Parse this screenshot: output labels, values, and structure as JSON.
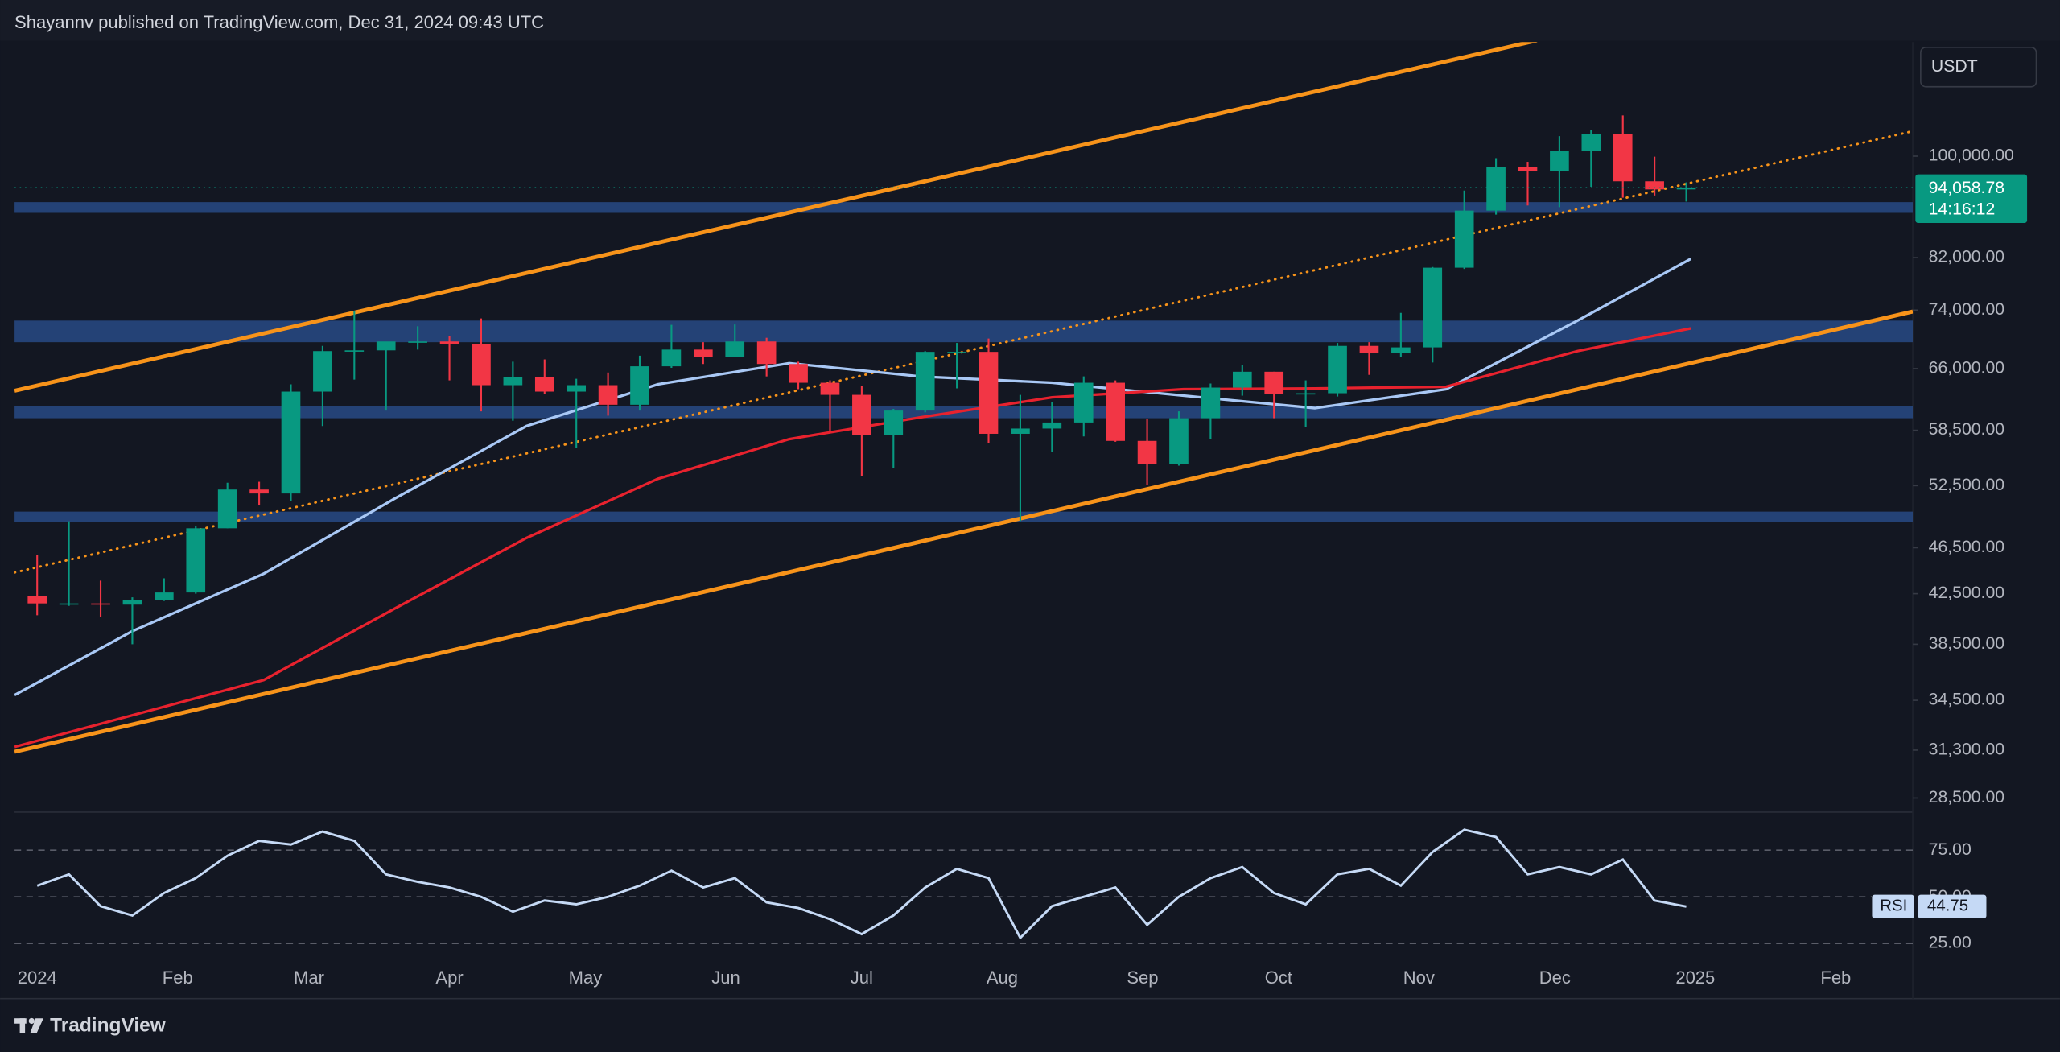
{
  "header": {
    "text": "Shayannv published on TradingView.com, Dec 31, 2024 09:43 UTC"
  },
  "currency": "USDT",
  "footer": {
    "brand": "TradingView"
  },
  "chart_data": [
    {
      "type": "candlestick",
      "log_scale": true,
      "grid": false,
      "up_color": "#089981",
      "down_color": "#f23645",
      "x": [
        0,
        7,
        14,
        21,
        28,
        35,
        42,
        49,
        56,
        63,
        70,
        77,
        84,
        91,
        98,
        105,
        112,
        119,
        126,
        133,
        140,
        147,
        154,
        161,
        168,
        175,
        182,
        189,
        196,
        203,
        210,
        217,
        224,
        231,
        238,
        245,
        252,
        259,
        266,
        273,
        280,
        287,
        294,
        301,
        308,
        315,
        322,
        329,
        336,
        343,
        350,
        357,
        364
      ],
      "open": [
        42280,
        41700,
        41700,
        41600,
        42000,
        42600,
        48300,
        52100,
        51700,
        63100,
        68300,
        68400,
        69600,
        69600,
        69300,
        63900,
        64900,
        63100,
        63900,
        61500,
        66300,
        68500,
        67500,
        69600,
        66600,
        64200,
        62700,
        58000,
        60800,
        68200,
        68200,
        58100,
        58700,
        59400,
        64200,
        57300,
        54800,
        59900,
        63600,
        65600,
        62800,
        62900,
        69000,
        68000,
        68800,
        80400,
        89900,
        97900,
        97200,
        101000,
        104400,
        95200,
        93700
      ],
      "high": [
        45880,
        48970,
        43600,
        42200,
        43800,
        48500,
        52800,
        52900,
        64000,
        69000,
        73800,
        68900,
        71700,
        70300,
        72800,
        66900,
        67200,
        64700,
        65500,
        67700,
        71900,
        69500,
        71950,
        70100,
        66900,
        64500,
        63800,
        61000,
        68300,
        69400,
        70000,
        62700,
        61800,
        65000,
        64500,
        59800,
        60700,
        64100,
        66500,
        65600,
        64500,
        69400,
        69500,
        73600,
        80500,
        93500,
        99600,
        98900,
        104000,
        105200,
        108300,
        99900,
        95000
      ],
      "low": [
        40750,
        41500,
        40600,
        38500,
        41900,
        42500,
        48300,
        50500,
        50900,
        59000,
        64600,
        60800,
        68500,
        64500,
        60700,
        59600,
        62800,
        56500,
        60200,
        60800,
        66100,
        66600,
        67500,
        65000,
        63400,
        58400,
        53500,
        54300,
        60600,
        63500,
        57100,
        49000,
        56100,
        57800,
        57200,
        52600,
        54600,
        57500,
        62600,
        59900,
        58900,
        62500,
        65200,
        67500,
        66800,
        80200,
        89200,
        90800,
        90500,
        94200,
        92200,
        92600,
        91500
      ],
      "close": [
        41700,
        41700,
        41600,
        42000,
        42600,
        48300,
        52100,
        51700,
        63100,
        68300,
        68400,
        69600,
        69600,
        69300,
        63900,
        64900,
        63100,
        63900,
        61500,
        66300,
        68500,
        67500,
        69600,
        66600,
        64200,
        62700,
        58000,
        60800,
        68200,
        68200,
        58100,
        58700,
        59400,
        64200,
        57300,
        54800,
        59900,
        63600,
        65600,
        62800,
        62900,
        69000,
        68000,
        68800,
        80400,
        89900,
        97900,
        97200,
        101000,
        104400,
        95200,
        93700,
        94058.78
      ],
      "moving_averages": [
        {
          "color": "#a9c8f5",
          "x": [
            -5,
            21,
            50,
            79,
            108,
            137,
            166,
            195,
            224,
            253,
            282,
            311,
            340,
            365
          ],
          "values": [
            34850,
            39500,
            44200,
            51200,
            59000,
            64000,
            66700,
            65000,
            64200,
            62600,
            61100,
            63400,
            72500,
            81800
          ]
        },
        {
          "color": "#e8222e",
          "x": [
            -5,
            50,
            79,
            108,
            137,
            166,
            195,
            224,
            253,
            282,
            311,
            340,
            365
          ],
          "values": [
            31500,
            35900,
            41300,
            47400,
            53200,
            57500,
            60000,
            62400,
            63400,
            63500,
            63700,
            68300,
            71400
          ]
        }
      ],
      "trendlines": [
        {
          "color": "#f7931a",
          "style": "solid",
          "x": [
            -5,
            331
          ],
          "values": [
            63200,
            125400
          ]
        },
        {
          "color": "#f7931a",
          "style": "solid",
          "x": [
            -5,
            414
          ],
          "values": [
            31200,
            73800
          ]
        },
        {
          "color": "#f7931a",
          "style": "dotted",
          "x": [
            -5,
            414
          ],
          "values": [
            44300,
            105000
          ]
        }
      ],
      "zone_color": "#284a85",
      "zones": [
        [
          89500,
          91400
        ],
        [
          69500,
          72500
        ],
        [
          59900,
          61300
        ],
        [
          48900,
          49900
        ]
      ],
      "last_price": {
        "value": 94058.78,
        "label": "94,058.78"
      },
      "countdown": "14:16:12",
      "xlim": [
        -5,
        414
      ],
      "xticks": [
        {
          "value": 0,
          "label": "2024"
        },
        {
          "value": 31,
          "label": "Feb"
        },
        {
          "value": 60,
          "label": "Mar"
        },
        {
          "value": 91,
          "label": "Apr"
        },
        {
          "value": 121,
          "label": "May"
        },
        {
          "value": 152,
          "label": "Jun"
        },
        {
          "value": 182,
          "label": "Jul"
        },
        {
          "value": 213,
          "label": "Aug"
        },
        {
          "value": 244,
          "label": "Sep"
        },
        {
          "value": 274,
          "label": "Oct"
        },
        {
          "value": 305,
          "label": "Nov"
        },
        {
          "value": 335,
          "label": "Dec"
        },
        {
          "value": 366,
          "label": "2025"
        },
        {
          "value": 397,
          "label": "Feb"
        }
      ],
      "ylim": [
        27800,
        125000
      ],
      "yticks": [
        {
          "value": 100000,
          "label": "100,000.00"
        },
        {
          "value": 82000,
          "label": "82,000.00"
        },
        {
          "value": 74000,
          "label": "74,000.00"
        },
        {
          "value": 66000,
          "label": "66,000.00"
        },
        {
          "value": 58500,
          "label": "58,500.00"
        },
        {
          "value": 52500,
          "label": "52,500.00"
        },
        {
          "value": 46500,
          "label": "46,500.00"
        },
        {
          "value": 42500,
          "label": "42,500.00"
        },
        {
          "value": 38500,
          "label": "38,500.00"
        },
        {
          "value": 34500,
          "label": "34,500.00"
        },
        {
          "value": 31300,
          "label": "31,300.00"
        },
        {
          "value": 28500,
          "label": "28,500.00"
        }
      ]
    },
    {
      "type": "line",
      "xlim": [
        -5,
        414
      ],
      "ylim": [
        9.5,
        94
      ],
      "yticks": [
        {
          "value": 25,
          "label": "25.00"
        },
        {
          "value": 50,
          "label": "50.00"
        },
        {
          "value": 75,
          "label": "75.00"
        }
      ],
      "x": [
        0,
        7,
        14,
        21,
        28,
        35,
        42,
        49,
        56,
        63,
        70,
        77,
        84,
        91,
        98,
        105,
        112,
        119,
        126,
        133,
        140,
        147,
        154,
        161,
        168,
        175,
        182,
        189,
        196,
        203,
        210,
        217,
        224,
        231,
        238,
        245,
        252,
        259,
        266,
        273,
        280,
        287,
        294,
        301,
        308,
        315,
        322,
        329,
        336,
        343,
        350,
        357,
        364
      ],
      "series": [
        {
          "name": "RSI",
          "color": "#c5d9f5",
          "values": [
            56,
            62,
            45,
            40,
            52,
            60,
            72,
            80,
            78,
            85,
            80,
            62,
            58,
            55,
            50,
            42,
            48,
            46,
            50,
            56,
            64,
            55,
            60,
            47,
            44,
            38,
            30,
            40,
            55,
            65,
            60,
            28,
            45,
            50,
            55,
            35,
            50,
            60,
            66,
            52,
            46,
            62,
            65,
            56,
            74,
            86,
            82,
            62,
            66,
            62,
            70,
            48,
            44.75
          ]
        }
      ],
      "last_value": 44.75
    }
  ]
}
